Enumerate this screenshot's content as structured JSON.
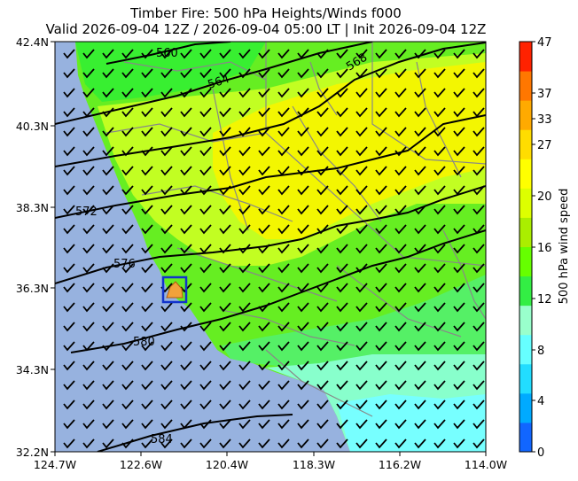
{
  "title_line1": "Timber Fire: 500 hPa Heights/Winds f000",
  "title_line2": "Valid 2026-09-04 12Z / 2026-09-04 05:00 LT | Init 2026-09-04 12Z",
  "map": {
    "lat_ticks": [
      "42.4N",
      "40.3N",
      "38.3N",
      "36.3N",
      "34.3N",
      "32.2N"
    ],
    "lon_ticks": [
      "124.7W",
      "122.6W",
      "120.4W",
      "118.3W",
      "116.2W",
      "114.0W"
    ],
    "contour_labels": [
      "560",
      "564",
      "568",
      "572",
      "576",
      "580",
      "584"
    ],
    "colors": {
      "ocean": "#97b2df",
      "land_base": "#66ee22",
      "boundaries": "#888888",
      "contours": "#000000",
      "fire_box": "#1133cc",
      "fire_fill": "#f2a23a"
    }
  },
  "colorbar": {
    "label": "500 hPa wind speed",
    "ticks": [
      "47",
      "37",
      "33",
      "27",
      "20",
      "16",
      "12",
      "8",
      "4",
      "0"
    ],
    "colors": [
      "#1166ff",
      "#00aaff",
      "#22ddff",
      "#66ffff",
      "#99ffcc",
      "#33ee44",
      "#66ff00",
      "#aaee00",
      "#ddff00",
      "#ffff00",
      "#ffdd00",
      "#ffaa00",
      "#ff7700",
      "#ff2200"
    ]
  }
}
